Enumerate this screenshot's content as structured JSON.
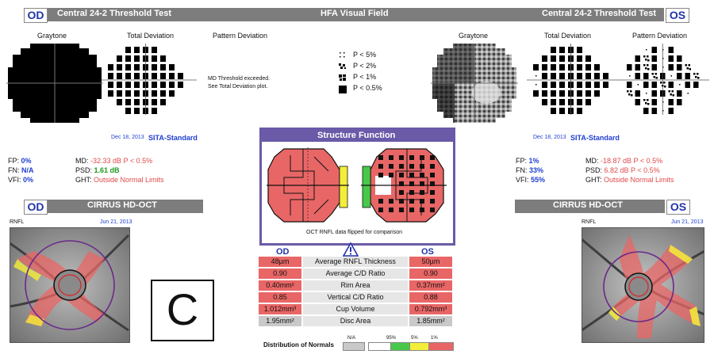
{
  "header": {
    "od_label": "OD",
    "os_label": "OS",
    "left_title": "Central 24-2 Threshold Test",
    "center_title": "HFA Visual Field",
    "right_title": "Central 24-2 Threshold Test"
  },
  "od_panel": {
    "graytone_label": "Graytone",
    "total_dev_label": "Total Deviation",
    "pattern_dev_label": "Pattern Deviation",
    "md_exceeded_line1": "MD Threshold exceeded.",
    "md_exceeded_line2": "See Total Deviation plot.",
    "date": "Dec 18, 2013",
    "strategy": "SITA-Standard",
    "fp_label": "FP:",
    "fp_value": "0%",
    "fn_label": "FN:",
    "fn_value": "N/A",
    "vfi_label": "VFI:",
    "vfi_value": "0%",
    "md_label": "MD:",
    "md_value": "-32.33 dB P < 0.5%",
    "psd_label": "PSD:",
    "psd_value": "1.61 dB",
    "ght_label": "GHT:",
    "ght_value": "Outside Normal Limits"
  },
  "os_panel": {
    "graytone_label": "Graytone",
    "total_dev_label": "Total Deviation",
    "pattern_dev_label": "Pattern Deviation",
    "date": "Dec 18, 2013",
    "strategy": "SITA-Standard",
    "fp_label": "FP:",
    "fp_value": "1%",
    "fn_label": "FN:",
    "fn_value": "33%",
    "vfi_label": "VFI:",
    "vfi_value": "55%",
    "md_label": "MD:",
    "md_value": "-18.87 dB P < 0.5%",
    "psd_label": "PSD:",
    "psd_value": "6.82 dB P < 0.5%",
    "ght_label": "GHT:",
    "ght_value": "Outside Normal Limits"
  },
  "legend": {
    "p5": "P < 5%",
    "p2": "P < 2%",
    "p1": "P < 1%",
    "p05": "P < 0.5%"
  },
  "structure": {
    "title": "Structure Function",
    "caption": "OCT RNFL data flipped for comparison"
  },
  "oct": {
    "od_label": "OD",
    "os_label": "OS",
    "title": "CIRRUS HD-OCT",
    "rnfl_label": "RNFL",
    "od_date": "Jun 21, 2013",
    "os_date": "Jun 21, 2013",
    "panel_letter": "C"
  },
  "rnfl_table": {
    "od_header": "OD",
    "os_header": "OS",
    "rows": [
      {
        "od": "48µm",
        "metric": "Average RNFL Thickness",
        "os": "50µm"
      },
      {
        "od": "0.90",
        "metric": "Average C/D Ratio",
        "os": "0.90"
      },
      {
        "od": "0.40mm²",
        "metric": "Rim Area",
        "os": "0.37mm²"
      },
      {
        "od": "0.85",
        "metric": "Vertical C/D Ratio",
        "os": "0.88"
      },
      {
        "od": "1.012mm³",
        "metric": "Cup Volume",
        "os": "0.792mm³"
      },
      {
        "od": "1.95mm²",
        "metric": "Disc Area",
        "os": "1.85mm²"
      }
    ],
    "normals_label": "Distribution of Normals",
    "na": "N/A",
    "n95": "95%",
    "n5": "5%",
    "n1": "1%"
  },
  "colors": {
    "header_gray": "#7d7d7d",
    "eye_blue": "#2233aa",
    "abnormal_red": "#e96666",
    "borderline_yellow": "#f2ee3a",
    "normal_green": "#48c84a",
    "frame_purple": "#6a5aa8"
  }
}
